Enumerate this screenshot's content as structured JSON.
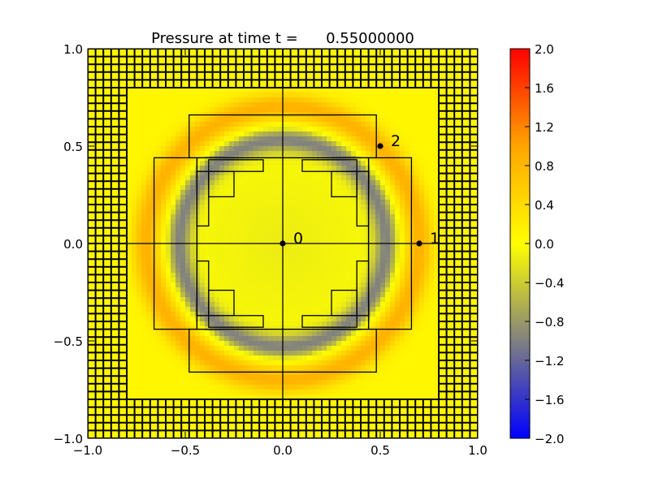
{
  "chart_data": {
    "type": "heatmap",
    "title": "Pressure at time t =      0.55000000",
    "xlabel": "",
    "ylabel": "",
    "xlim": [
      -1.0,
      1.0
    ],
    "ylim": [
      -1.0,
      1.0
    ],
    "x_ticks": [
      "−1.0",
      "−0.5",
      "0.0",
      "0.5",
      "1.0"
    ],
    "y_ticks": [
      "−1.0",
      "−0.5",
      "0.0",
      "0.5",
      "1.0"
    ],
    "colorbar": {
      "range": [
        -2.0,
        2.0
      ],
      "ticks": [
        "2.0",
        "1.6",
        "1.2",
        "0.8",
        "0.4",
        "0.0",
        "−0.4",
        "−0.8",
        "−1.2",
        "−1.6",
        "−2.0"
      ],
      "colors": [
        "#0000ff",
        "#808080",
        "#ffff00",
        "#ffa500",
        "#ff0000"
      ]
    },
    "field": {
      "description_values": "ring wave",
      "ring_radius": 0.58,
      "inner_value": -0.15,
      "trough_value": -0.95,
      "crest_value": 0.75,
      "outer_value": 0.1
    },
    "probes": [
      {
        "label": "0",
        "x": 0.0,
        "y": 0.0
      },
      {
        "label": "1",
        "x": 0.7,
        "y": 0.0
      },
      {
        "label": "2",
        "x": 0.5,
        "y": 0.5
      }
    ],
    "grid": {
      "outer_cell": 0.04,
      "outer_boundary": 1.0,
      "inner_boundary": 0.8
    }
  }
}
